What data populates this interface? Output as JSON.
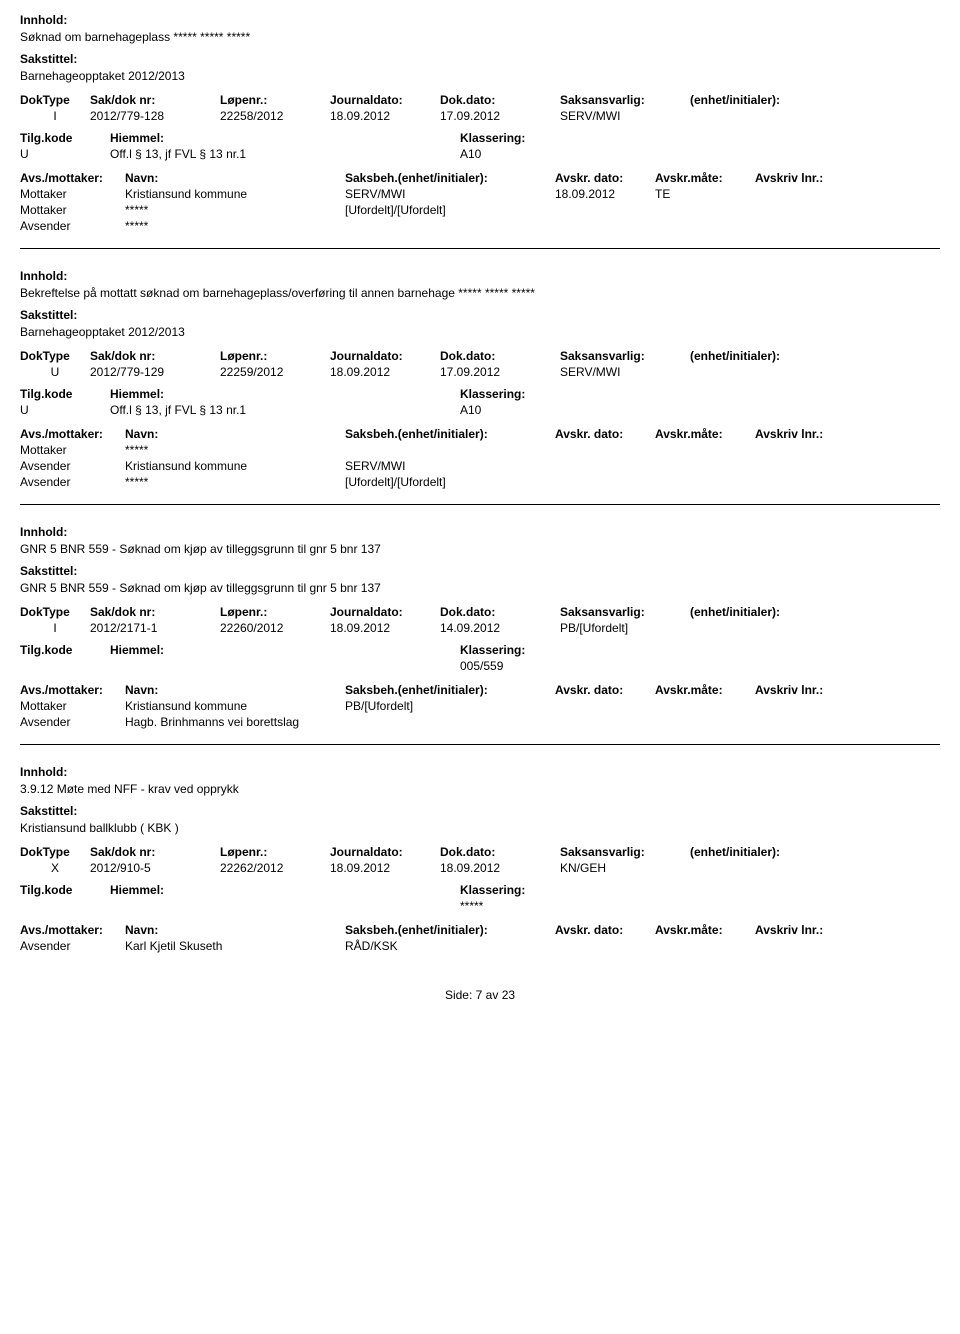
{
  "labels": {
    "innhold": "Innhold:",
    "sakstittel": "Sakstittel:",
    "doktype": "DokType",
    "sakdok": "Sak/dok nr:",
    "lopenr": "Løpenr.:",
    "journaldato": "Journaldato:",
    "dokdato": "Dok.dato:",
    "saksansvarlig": "Saksansvarlig:",
    "enhet": "(enhet/initialer):",
    "tilgkode": "Tilg.kode",
    "hjemmel": "Hiemmel:",
    "klassering": "Klassering:",
    "avsmottaker": "Avs./mottaker:",
    "navn": "Navn:",
    "saksbeh": "Saksbeh.(enhet/initialer):",
    "avskrdato": "Avskr. dato:",
    "avskrmate": "Avskr.måte:",
    "avskrivlnr": "Avskriv lnr.:"
  },
  "records": [
    {
      "innhold": "Søknad om barnehageplass ***** ***** *****",
      "sakstittel": "Barnehageopptaket 2012/2013",
      "doktype": "I",
      "sakdok": "2012/779-128",
      "lopenr": "22258/2012",
      "journaldato": "18.09.2012",
      "dokdato": "17.09.2012",
      "saksansvarlig": "SERV/MWI",
      "enhet": "",
      "tilgkode": "U",
      "hjemmel": "Off.l § 13, jf FVL § 13 nr.1",
      "klassering": "A10",
      "parties": [
        {
          "type": "Mottaker",
          "name": "Kristiansund kommune",
          "saksbeh": "SERV/MWI",
          "dato": "18.09.2012",
          "mate": "TE"
        },
        {
          "type": "Mottaker",
          "name": "*****",
          "saksbeh": "[Ufordelt]/[Ufordelt]",
          "dato": "",
          "mate": ""
        },
        {
          "type": "Avsender",
          "name": "*****",
          "saksbeh": "",
          "dato": "",
          "mate": ""
        }
      ]
    },
    {
      "innhold": "Bekreftelse på mottatt søknad om barnehageplass/overføring til annen barnehage ***** ***** *****",
      "sakstittel": "Barnehageopptaket 2012/2013",
      "doktype": "U",
      "sakdok": "2012/779-129",
      "lopenr": "22259/2012",
      "journaldato": "18.09.2012",
      "dokdato": "17.09.2012",
      "saksansvarlig": "SERV/MWI",
      "enhet": "",
      "tilgkode": "U",
      "hjemmel": "Off.l § 13, jf FVL § 13 nr.1",
      "klassering": "A10",
      "parties": [
        {
          "type": "Mottaker",
          "name": "*****",
          "saksbeh": "",
          "dato": "",
          "mate": ""
        },
        {
          "type": "Avsender",
          "name": "Kristiansund kommune",
          "saksbeh": "SERV/MWI",
          "dato": "",
          "mate": ""
        },
        {
          "type": "Avsender",
          "name": "*****",
          "saksbeh": "[Ufordelt]/[Ufordelt]",
          "dato": "",
          "mate": ""
        }
      ]
    },
    {
      "innhold": "GNR 5 BNR 559 - Søknad om kjøp av tilleggsgrunn til gnr 5 bnr 137",
      "sakstittel": "GNR 5 BNR 559 - Søknad om kjøp av tilleggsgrunn til gnr 5 bnr 137",
      "doktype": "I",
      "sakdok": "2012/2171-1",
      "lopenr": "22260/2012",
      "journaldato": "18.09.2012",
      "dokdato": "14.09.2012",
      "saksansvarlig": "PB/[Ufordelt]",
      "enhet": "",
      "tilgkode": "",
      "hjemmel": "",
      "klassering": "005/559",
      "parties": [
        {
          "type": "Mottaker",
          "name": "Kristiansund kommune",
          "saksbeh": "PB/[Ufordelt]",
          "dato": "",
          "mate": ""
        },
        {
          "type": "Avsender",
          "name": "Hagb. Brinhmanns vei borettslag",
          "saksbeh": "",
          "dato": "",
          "mate": ""
        }
      ]
    },
    {
      "innhold": "3.9.12 Møte med NFF - krav ved opprykk",
      "sakstittel": "Kristiansund ballklubb ( KBK )",
      "doktype": "X",
      "sakdok": "2012/910-5",
      "lopenr": "22262/2012",
      "journaldato": "18.09.2012",
      "dokdato": "18.09.2012",
      "saksansvarlig": "KN/GEH",
      "enhet": "",
      "tilgkode": "",
      "hjemmel": "",
      "klassering": "*****",
      "parties": [
        {
          "type": "Avsender",
          "name": "Karl Kjetil Skuseth",
          "saksbeh": "RÅD/KSK",
          "dato": "",
          "mate": ""
        }
      ]
    }
  ],
  "footer": {
    "side": "Side:",
    "page": "7",
    "av": "av",
    "total": "23"
  }
}
